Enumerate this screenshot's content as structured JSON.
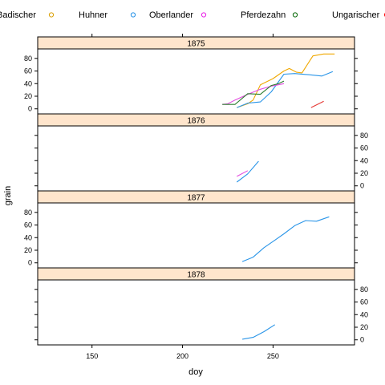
{
  "chart_data": {
    "type": "line",
    "xlabel": "doy",
    "ylabel": "grain",
    "xlim": [
      120,
      295
    ],
    "ylim": [
      -8,
      95
    ],
    "x_ticks": [
      150,
      200,
      250
    ],
    "y_ticks": [
      0,
      20,
      40,
      60,
      80
    ],
    "grid": false,
    "legend_position": "top",
    "legend": [
      {
        "name": "Badischer",
        "label": "Badischer",
        "color": "#d99e00"
      },
      {
        "name": "Huhner",
        "label": "Huhner",
        "color": "#1f8ee6"
      },
      {
        "name": "Oberlander",
        "label": "Oberlander",
        "color": "#e81ee6"
      },
      {
        "name": "Pferdezahn",
        "label": "Pferdezahn",
        "color": "#006400"
      },
      {
        "name": "Ungarischer",
        "label": "Ungarischer",
        "color": "#ff0000"
      }
    ],
    "panels": [
      {
        "year": "1875",
        "lines": [
          {
            "series": "Badischer",
            "color": "#f0a800",
            "points": [
              [
                230,
                2
              ],
              [
                236,
                8
              ],
              [
                239,
                14
              ],
              [
                243,
                38
              ],
              [
                250,
                48
              ],
              [
                256,
                60
              ],
              [
                259,
                64
              ],
              [
                263,
                58
              ],
              [
                266,
                57
              ],
              [
                272,
                84
              ],
              [
                278,
                87
              ],
              [
                284,
                87
              ]
            ]
          },
          {
            "series": "Huhner",
            "color": "#2a95e8",
            "points": [
              [
                230,
                2
              ],
              [
                236,
                9
              ],
              [
                243,
                11
              ],
              [
                249,
                27
              ],
              [
                253,
                43
              ],
              [
                256,
                55
              ],
              [
                262,
                56
              ],
              [
                270,
                54
              ],
              [
                277,
                52
              ],
              [
                283,
                59
              ]
            ]
          },
          {
            "series": "Oberlander",
            "color": "#e34ce0",
            "points": [
              [
                222,
                7
              ],
              [
                225,
                8
              ],
              [
                229,
                14
              ],
              [
                236,
                23
              ],
              [
                243,
                31
              ],
              [
                249,
                36
              ],
              [
                256,
                40
              ]
            ]
          },
          {
            "series": "Pferdezahn",
            "color": "#2e7d32",
            "points": [
              [
                222,
                7
              ],
              [
                229,
                7
              ],
              [
                236,
                24
              ],
              [
                243,
                23
              ],
              [
                249,
                37
              ],
              [
                253,
                40
              ],
              [
                256,
                44
              ]
            ]
          },
          {
            "series": "Ungarischer",
            "color": "#e53935",
            "points": [
              [
                271,
                2
              ],
              [
                278,
                12
              ]
            ]
          }
        ]
      },
      {
        "year": "1876",
        "lines": [
          {
            "series": "Huhner",
            "color": "#2a95e8",
            "points": [
              [
                230,
                6
              ],
              [
                236,
                19
              ],
              [
                242,
                39
              ]
            ]
          },
          {
            "series": "Oberlander",
            "color": "#e34ce0",
            "points": [
              [
                230,
                15
              ],
              [
                236,
                24
              ]
            ]
          }
        ]
      },
      {
        "year": "1877",
        "lines": [
          {
            "series": "Huhner",
            "color": "#2a95e8",
            "points": [
              [
                233,
                2
              ],
              [
                239,
                9
              ],
              [
                245,
                24
              ],
              [
                251,
                36
              ],
              [
                256,
                46
              ],
              [
                262,
                59
              ],
              [
                268,
                67
              ],
              [
                274,
                66
              ],
              [
                281,
                73
              ]
            ]
          }
        ]
      },
      {
        "year": "1878",
        "lines": [
          {
            "series": "Huhner",
            "color": "#2a95e8",
            "points": [
              [
                233,
                1
              ],
              [
                239,
                4
              ],
              [
                245,
                13
              ],
              [
                251,
                24
              ]
            ]
          }
        ]
      }
    ]
  }
}
